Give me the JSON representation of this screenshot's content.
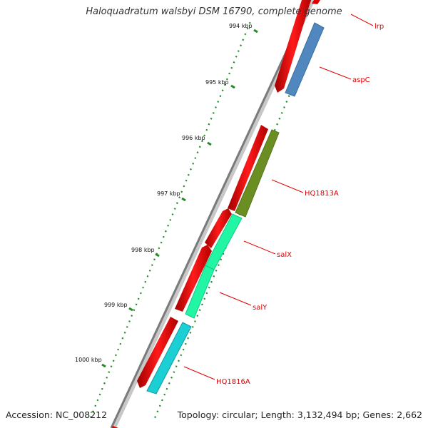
{
  "title": "Haloquadratum walsbyi DSM 16790, complete genome",
  "footer": {
    "accession": "Accession: NC_008212",
    "topology": "Topology: circular; Length: 3,132,494 bp; Genes: 2,662"
  },
  "ticks": [
    {
      "label": "994 kbp"
    },
    {
      "label": "995 kbp"
    },
    {
      "label": "996 kbp"
    },
    {
      "label": "997 kbp"
    },
    {
      "label": "998 kbp"
    },
    {
      "label": "999 kbp"
    },
    {
      "label": "1000 kbp"
    }
  ],
  "genes": [
    {
      "name": "lrp",
      "color": "#5fa0d8"
    },
    {
      "name": "aspC",
      "color": "#4682b4"
    },
    {
      "name": "HQ1813A",
      "color": "#6b8e23"
    },
    {
      "name": "salX",
      "color": "#00fa9a"
    },
    {
      "name": "salY",
      "color": "#00fa9a"
    },
    {
      "name": "HQ1816A",
      "color": "#00ced1"
    }
  ],
  "colors": {
    "strand_feature": "#ff0000",
    "backbone": "#808080",
    "tick": "#228b22",
    "label": "#e00000"
  }
}
